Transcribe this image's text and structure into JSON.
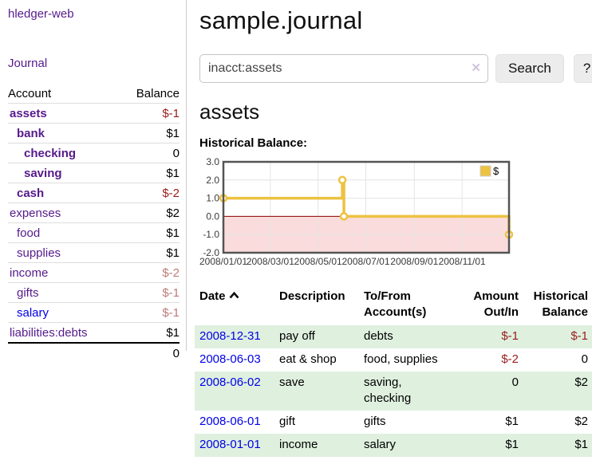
{
  "app_title": "hledger-web",
  "sidebar": {
    "journal_link": "Journal",
    "headers": {
      "account": "Account",
      "balance": "Balance"
    },
    "accounts": [
      {
        "name": "assets",
        "balance": "$-1",
        "indent": 1,
        "bold": true,
        "name_style": "purple",
        "balance_style": "neg"
      },
      {
        "name": "bank",
        "balance": "$1",
        "indent": 2,
        "bold": true,
        "name_style": "purple",
        "balance_style": "pos"
      },
      {
        "name": "checking",
        "balance": "0",
        "indent": 3,
        "bold": true,
        "name_style": "purple",
        "balance_style": "pos"
      },
      {
        "name": "saving",
        "balance": "$1",
        "indent": 3,
        "bold": true,
        "name_style": "purple",
        "balance_style": "pos"
      },
      {
        "name": "cash",
        "balance": "$-2",
        "indent": 2,
        "bold": true,
        "name_style": "purple",
        "balance_style": "neg"
      },
      {
        "name": "expenses",
        "balance": "$2",
        "indent": 1,
        "bold": false,
        "name_style": "purple",
        "balance_style": "pos"
      },
      {
        "name": "food",
        "balance": "$1",
        "indent": 2,
        "bold": false,
        "name_style": "purple",
        "balance_style": "pos"
      },
      {
        "name": "supplies",
        "balance": "$1",
        "indent": 2,
        "bold": false,
        "name_style": "purple",
        "balance_style": "pos"
      },
      {
        "name": "income",
        "balance": "$-2",
        "indent": 1,
        "bold": false,
        "name_style": "purple",
        "balance_style": "negdim"
      },
      {
        "name": "gifts",
        "balance": "$-1",
        "indent": 2,
        "bold": false,
        "name_style": "purple",
        "balance_style": "negdim"
      },
      {
        "name": "salary",
        "balance": "$-1",
        "indent": 2,
        "bold": false,
        "name_style": "blue",
        "balance_style": "negdim"
      },
      {
        "name": "liabilities:debts",
        "balance": "$1",
        "indent": 1,
        "bold": false,
        "name_style": "purple",
        "balance_style": "pos"
      }
    ],
    "total": "0"
  },
  "main": {
    "title": "sample.journal",
    "search": {
      "value": "inacct:assets",
      "clear_icon": "✕",
      "search_button": "Search",
      "help_button": "?"
    },
    "account_heading": "assets",
    "chart_title": "Historical Balance:"
  },
  "register": {
    "headers": [
      "Date",
      "Description",
      "To/From Account(s)",
      "Amount Out/In",
      "Historical Balance"
    ],
    "rows": [
      {
        "date": "2008-12-31",
        "description": "pay off",
        "accounts": "debts",
        "amount": "$-1",
        "amount_style": "neg",
        "balance": "$-1",
        "balance_style": "neg"
      },
      {
        "date": "2008-06-03",
        "description": "eat & shop",
        "accounts": "food, supplies",
        "amount": "$-2",
        "amount_style": "neg",
        "balance": "0",
        "balance_style": "pos"
      },
      {
        "date": "2008-06-02",
        "description": "save",
        "accounts": "saving, checking",
        "amount": "0",
        "amount_style": "pos",
        "balance": "$2",
        "balance_style": "pos"
      },
      {
        "date": "2008-06-01",
        "description": "gift",
        "accounts": "gifts",
        "amount": "$1",
        "amount_style": "pos",
        "balance": "$2",
        "balance_style": "pos"
      },
      {
        "date": "2008-01-01",
        "description": "income",
        "accounts": "salary",
        "amount": "$1",
        "amount_style": "pos",
        "balance": "$1",
        "balance_style": "pos"
      }
    ]
  },
  "chart_data": {
    "type": "line",
    "style": "step-after",
    "title": "Historical Balance",
    "series": [
      {
        "name": "$",
        "color": "#EDC240",
        "points": [
          {
            "date": "2008-01-01",
            "value": 1
          },
          {
            "date": "2008-06-01",
            "value": 2
          },
          {
            "date": "2008-06-03",
            "value": 0
          },
          {
            "date": "2008-12-31",
            "value": -1
          }
        ]
      }
    ],
    "x_range": [
      "2008-01-01",
      "2008-12-31"
    ],
    "ylim": [
      -2,
      3
    ],
    "yticks": [
      3,
      2,
      1,
      0,
      -1,
      -2
    ],
    "xtick_labels": [
      "2008/01/01",
      "2008/03/01",
      "2008/05/01",
      "2008/07/01",
      "2008/09/01",
      "2008/11/01"
    ],
    "legend": {
      "label": "$",
      "position": "top-right"
    },
    "grid": true,
    "zero_line_color": "#8b0000",
    "negative_fill": "#fadcdc",
    "border_color": "#545454",
    "grid_color": "#e4e4e4"
  },
  "colors": {
    "accent_purple": "#551a8b",
    "link_blue": "#0000e8",
    "negative": "#9a1b1b",
    "negative_dim": "#bb7b79",
    "row_green": "#dff0df",
    "chart_line": "#EDC240"
  }
}
